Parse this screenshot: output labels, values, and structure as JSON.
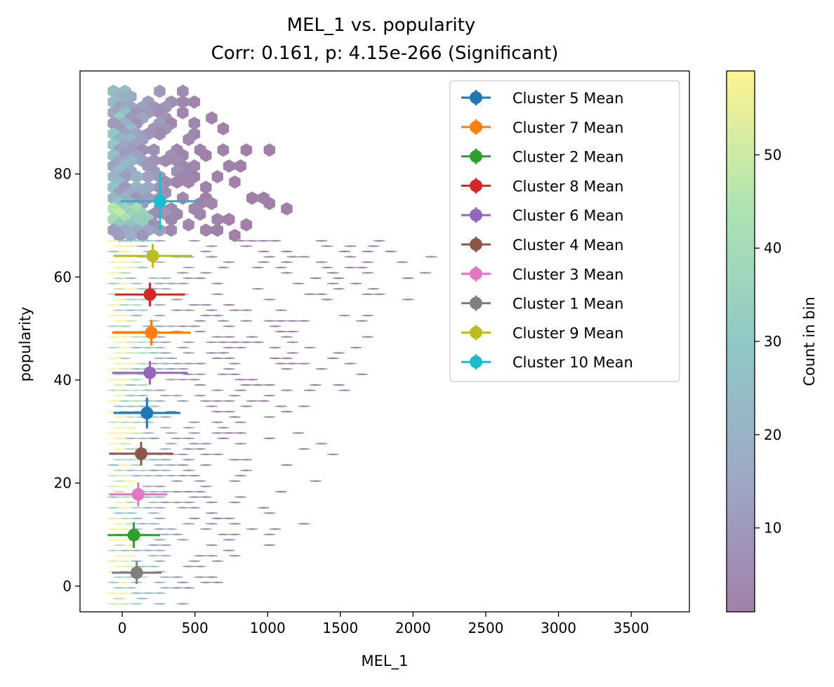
{
  "chart_data": {
    "type": "hexbin",
    "title": "MEL_1 vs. popularity",
    "subtitle": "Corr: 0.161, p: 4.15e-266 (Significant)",
    "xlabel": "MEL_1",
    "ylabel": "popularity",
    "xlim": [
      -290,
      3900
    ],
    "ylim": [
      -5,
      100
    ],
    "xticks": [
      "0",
      "500",
      "1000",
      "1500",
      "2000",
      "2500",
      "3000",
      "3500"
    ],
    "yticks": [
      "0",
      "20",
      "40",
      "60",
      "80"
    ],
    "grid": false,
    "legend_position": "top-right",
    "colorbar": {
      "label": "Count in bin",
      "range": [
        1,
        59
      ],
      "ticks": [
        "10",
        "20",
        "30",
        "40",
        "50"
      ],
      "colormap": "viridis",
      "alpha": 0.5
    },
    "series": [
      {
        "name": "Cluster 5 Mean",
        "color": "#1f77b4",
        "x": 170,
        "y": 33.6,
        "xerr": 230,
        "yerr": 3.0
      },
      {
        "name": "Cluster 7 Mean",
        "color": "#ff7f0e",
        "x": 200,
        "y": 49.2,
        "xerr": 270,
        "yerr": 2.5
      },
      {
        "name": "Cluster 2 Mean",
        "color": "#2ca02c",
        "x": 80,
        "y": 9.9,
        "xerr": 180,
        "yerr": 2.5
      },
      {
        "name": "Cluster 8 Mean",
        "color": "#d62728",
        "x": 190,
        "y": 56.6,
        "xerr": 240,
        "yerr": 2.3
      },
      {
        "name": "Cluster 6 Mean",
        "color": "#9467bd",
        "x": 190,
        "y": 41.4,
        "xerr": 260,
        "yerr": 2.3
      },
      {
        "name": "Cluster 4 Mean",
        "color": "#8c564b",
        "x": 130,
        "y": 25.7,
        "xerr": 220,
        "yerr": 2.3
      },
      {
        "name": "Cluster 3 Mean",
        "color": "#e377c2",
        "x": 110,
        "y": 17.8,
        "xerr": 200,
        "yerr": 2.3
      },
      {
        "name": "Cluster 1 Mean",
        "color": "#7f7f7f",
        "x": 100,
        "y": 2.6,
        "xerr": 170,
        "yerr": 2.2
      },
      {
        "name": "Cluster 9 Mean",
        "color": "#bcbd22",
        "x": 210,
        "y": 64.1,
        "xerr": 270,
        "yerr": 2.3
      },
      {
        "name": "Cluster 10 Mean",
        "color": "#17becf",
        "x": 260,
        "y": 74.7,
        "xerr": 270,
        "yerr": 5.5
      }
    ]
  }
}
